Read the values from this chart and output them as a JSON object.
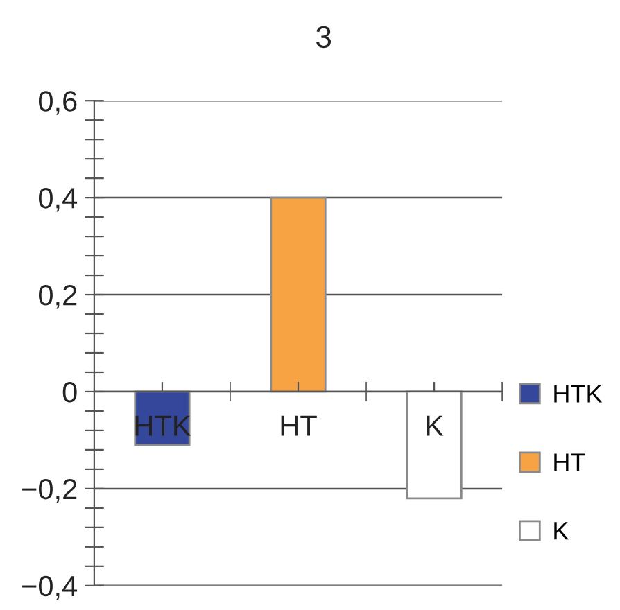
{
  "chart_data": {
    "type": "bar",
    "title": "3",
    "categories": [
      "HTK",
      "HT",
      "K"
    ],
    "series": [
      {
        "name": "HTK",
        "color": "#34479b",
        "values": [
          -0.11,
          null,
          null
        ]
      },
      {
        "name": "HT",
        "color": "#f7a343",
        "values": [
          null,
          0.4,
          null
        ]
      },
      {
        "name": "K",
        "color": "#ffffff",
        "values": [
          null,
          null,
          -0.22
        ]
      }
    ],
    "ylim": [
      -0.4,
      0.6
    ],
    "yticks": [
      {
        "value": -0.4,
        "label": "−0,4"
      },
      {
        "value": -0.36,
        "label": null
      },
      {
        "value": -0.32,
        "label": null
      },
      {
        "value": -0.28,
        "label": null
      },
      {
        "value": -0.24,
        "label": null
      },
      {
        "value": -0.2,
        "label": "−0,2"
      },
      {
        "value": -0.16,
        "label": null
      },
      {
        "value": -0.12,
        "label": null
      },
      {
        "value": -0.08,
        "label": null
      },
      {
        "value": -0.04,
        "label": null
      },
      0,
      {
        "value": 0.04,
        "label": null
      },
      {
        "value": 0.08,
        "label": null
      },
      {
        "value": 0.12,
        "label": null
      },
      {
        "value": 0.16,
        "label": null
      },
      {
        "value": 0.2,
        "label": "0,2"
      },
      {
        "value": 0.24,
        "label": null
      },
      {
        "value": 0.28,
        "label": null
      },
      {
        "value": 0.32,
        "label": null
      },
      {
        "value": 0.36,
        "label": null
      },
      {
        "value": 0.4,
        "label": "0,4"
      },
      {
        "value": 0.44,
        "label": null
      },
      {
        "value": 0.48,
        "label": null
      },
      {
        "value": 0.52,
        "label": null
      },
      {
        "value": 0.56,
        "label": null
      },
      {
        "value": 0.6,
        "label": "0,6"
      }
    ],
    "grid": "y",
    "legend": "right"
  }
}
